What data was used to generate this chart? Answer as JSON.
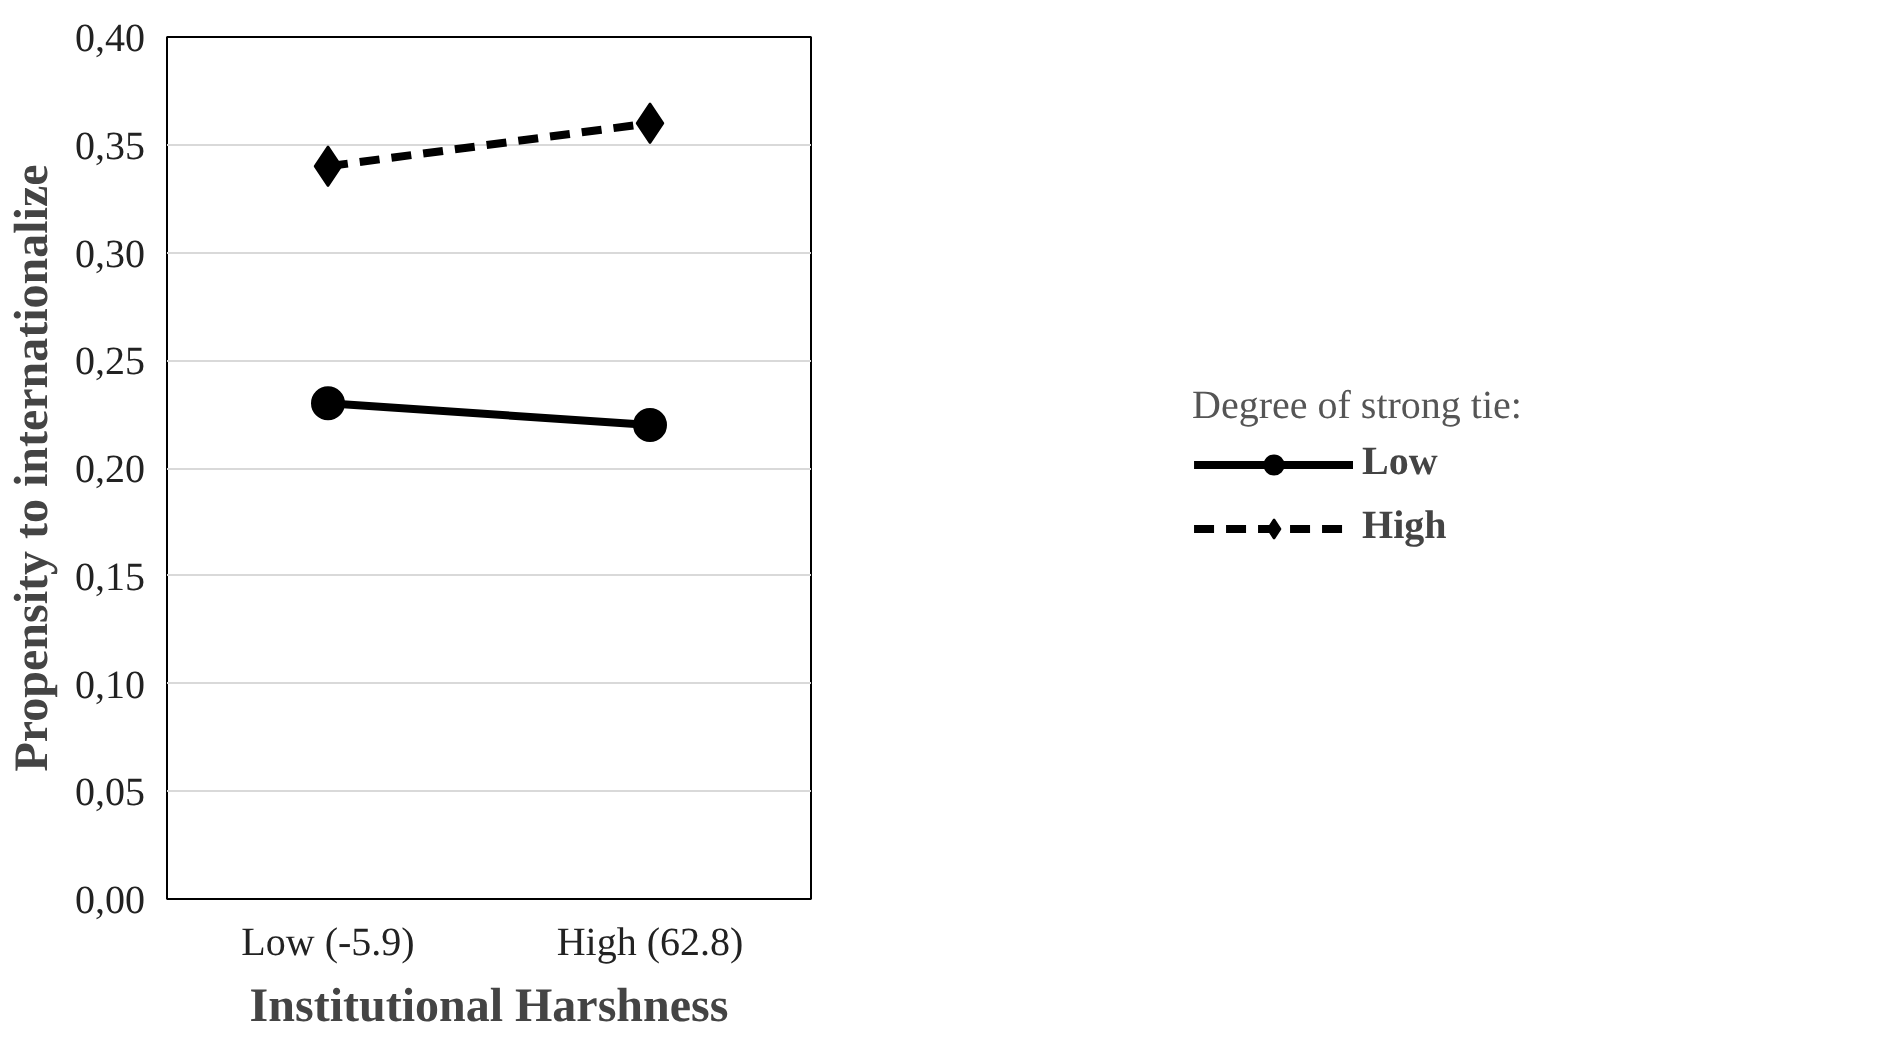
{
  "chart_data": {
    "type": "line",
    "xlabel": "Institutional Harshness",
    "ylabel": "Propensity to internationalize",
    "legend_title": "Degree of strong tie:",
    "categories": [
      "Low (-5.9)",
      "High (62.8)"
    ],
    "series": [
      {
        "name": "Low",
        "color": "#000000",
        "values": [
          0.23,
          0.22
        ],
        "marker": "circle",
        "line_style": "solid"
      },
      {
        "name": "High",
        "color": "#000000",
        "values": [
          0.34,
          0.36
        ],
        "marker": "diamond",
        "line_style": "dashed"
      }
    ],
    "ylim": [
      0,
      0.4
    ],
    "yticks": [
      {
        "value": 0,
        "label": "0,00"
      },
      {
        "value": 0.05,
        "label": "0,05"
      },
      {
        "value": 0.1,
        "label": "0,10"
      },
      {
        "value": 0.15,
        "label": "0,15"
      },
      {
        "value": 0.2,
        "label": "0,20"
      },
      {
        "value": 0.25,
        "label": "0,25"
      },
      {
        "value": 0.3,
        "label": "0,30"
      },
      {
        "value": 0.35,
        "label": "0,35"
      },
      {
        "value": 0.4,
        "label": "0,40"
      }
    ],
    "grid": "y",
    "legend": "right"
  }
}
